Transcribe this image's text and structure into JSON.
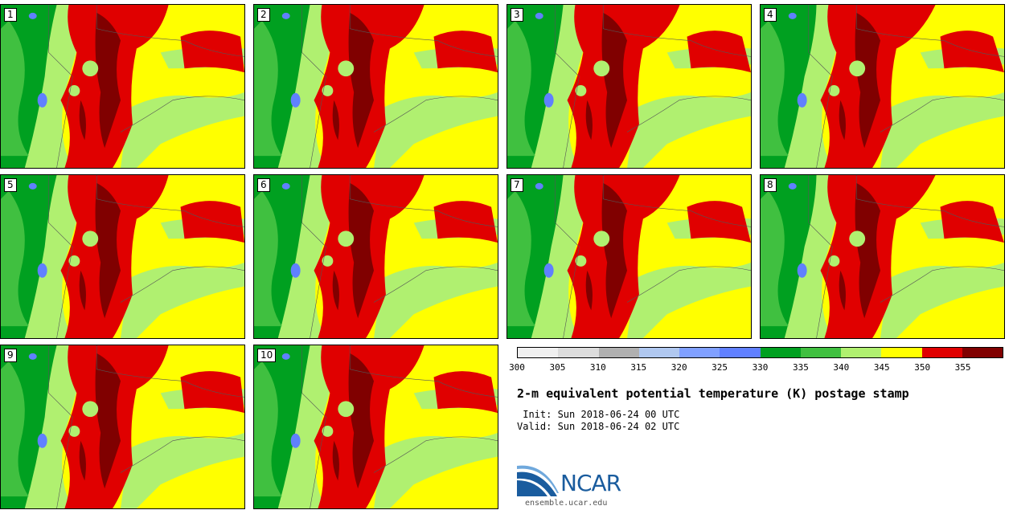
{
  "panels": [
    {
      "label": "1"
    },
    {
      "label": "2"
    },
    {
      "label": "3"
    },
    {
      "label": "4"
    },
    {
      "label": "5"
    },
    {
      "label": "6"
    },
    {
      "label": "7"
    },
    {
      "label": "8"
    },
    {
      "label": "9"
    },
    {
      "label": "10"
    }
  ],
  "colorbar": {
    "colors": [
      "#f0f0f0",
      "#dcdcdc",
      "#b0b0b0",
      "#b0c8f0",
      "#80a0ff",
      "#6080ff",
      "#00a020",
      "#40c040",
      "#b0f070",
      "#ffff00",
      "#e00000",
      "#800000"
    ],
    "ticks": [
      "300",
      "305",
      "310",
      "315",
      "320",
      "325",
      "330",
      "335",
      "340",
      "345",
      "350",
      "355"
    ]
  },
  "title": "2-m equivalent potential temperature (K) postage stamp",
  "init": " Init: Sun 2018-06-24 00 UTC",
  "valid": "Valid: Sun 2018-06-24 02 UTC",
  "logo": {
    "text": "NCAR",
    "color": "#1a5c9e"
  },
  "website": "ensemble.ucar.edu"
}
